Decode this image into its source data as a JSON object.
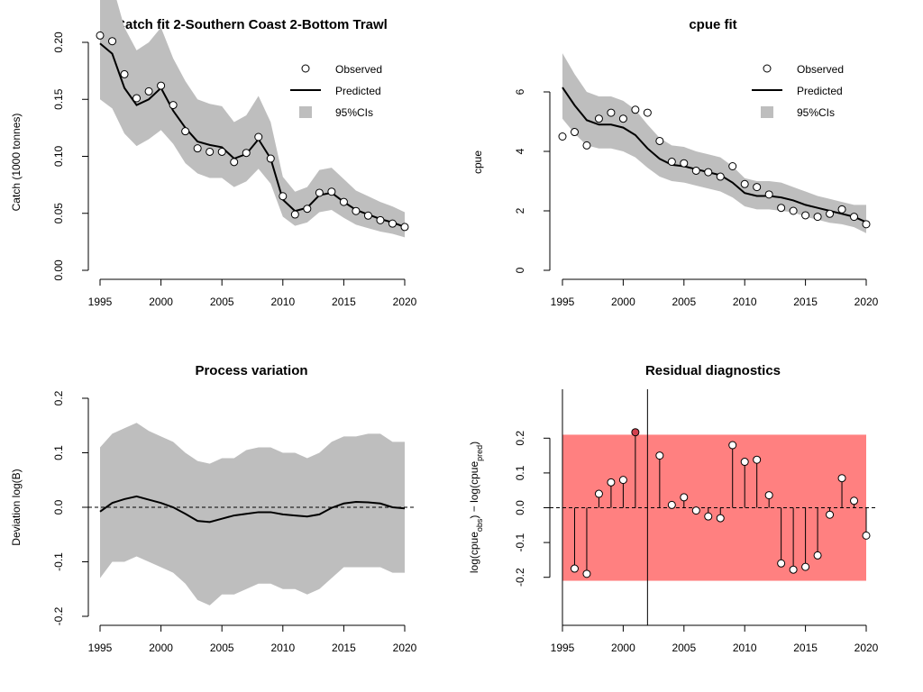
{
  "chart_data": [
    {
      "id": "catch",
      "type": "line",
      "title": "Catch fit 2-Southern Coast 2-Bottom Trawl",
      "xlabel": "",
      "ylabel": "Catch (1000 tonnes)",
      "xlim": [
        1995,
        2020
      ],
      "ylim": [
        0,
        0.2
      ],
      "xticks": [
        "1995",
        "2000",
        "2005",
        "2010",
        "2015",
        "2020"
      ],
      "yticks": [
        "0.00",
        "0.05",
        "0.10",
        "0.15",
        "0.20"
      ],
      "legend": {
        "position": "top-right",
        "entries": [
          "Observed",
          "Predicted",
          "95%CIs"
        ]
      },
      "x": [
        1995,
        1996,
        1997,
        1998,
        1999,
        2000,
        2001,
        2002,
        2003,
        2004,
        2005,
        2006,
        2007,
        2008,
        2009,
        2010,
        2011,
        2012,
        2013,
        2014,
        2015,
        2016,
        2017,
        2018,
        2019,
        2020
      ],
      "series": [
        {
          "name": "Observed",
          "values": [
            0.206,
            0.201,
            0.172,
            0.151,
            0.157,
            0.162,
            0.145,
            0.122,
            0.107,
            0.104,
            0.104,
            0.095,
            0.103,
            0.117,
            0.098,
            0.065,
            0.049,
            0.054,
            0.068,
            0.069,
            0.06,
            0.052,
            0.048,
            0.044,
            0.041,
            0.038
          ]
        },
        {
          "name": "Predicted",
          "values": [
            0.199,
            0.19,
            0.16,
            0.145,
            0.15,
            0.16,
            0.14,
            0.125,
            0.113,
            0.11,
            0.108,
            0.098,
            0.102,
            0.115,
            0.098,
            0.062,
            0.052,
            0.055,
            0.066,
            0.068,
            0.06,
            0.053,
            0.049,
            0.045,
            0.042,
            0.038
          ]
        },
        {
          "name": "95%CIs",
          "lower": [
            0.15,
            0.142,
            0.12,
            0.109,
            0.115,
            0.123,
            0.111,
            0.094,
            0.085,
            0.081,
            0.081,
            0.073,
            0.078,
            0.089,
            0.076,
            0.047,
            0.039,
            0.042,
            0.051,
            0.053,
            0.046,
            0.04,
            0.037,
            0.034,
            0.032,
            0.029
          ],
          "upper": [
            0.264,
            0.251,
            0.213,
            0.193,
            0.2,
            0.213,
            0.186,
            0.166,
            0.15,
            0.146,
            0.144,
            0.13,
            0.136,
            0.153,
            0.13,
            0.082,
            0.069,
            0.073,
            0.088,
            0.09,
            0.08,
            0.07,
            0.065,
            0.06,
            0.056,
            0.051
          ]
        }
      ],
      "colors": {
        "band": "#bebebe",
        "line": "#000000",
        "point_fill": "#ffffff"
      }
    },
    {
      "id": "cpue",
      "type": "line",
      "title": "cpue fit",
      "xlabel": "",
      "ylabel": "cpue",
      "xlim": [
        1995,
        2020
      ],
      "ylim": [
        0,
        7
      ],
      "xticks": [
        "1995",
        "2000",
        "2005",
        "2010",
        "2015",
        "2020"
      ],
      "yticks": [
        "0",
        "2",
        "4",
        "6"
      ],
      "legend": {
        "position": "top-right",
        "entries": [
          "Observed",
          "Predicted",
          "95%CIs"
        ]
      },
      "x": [
        1995,
        1996,
        1997,
        1998,
        1999,
        2000,
        2001,
        2002,
        2003,
        2004,
        2005,
        2006,
        2007,
        2008,
        2009,
        2010,
        2011,
        2012,
        2013,
        2014,
        2015,
        2016,
        2017,
        2018,
        2019,
        2020
      ],
      "series": [
        {
          "name": "Observed",
          "values": [
            4.5,
            4.65,
            4.2,
            5.1,
            5.3,
            5.1,
            5.4,
            5.3,
            4.35,
            3.65,
            3.6,
            3.35,
            3.3,
            3.15,
            3.5,
            2.9,
            2.8,
            2.55,
            2.1,
            2.0,
            1.85,
            1.8,
            1.9,
            2.05,
            1.8,
            1.55
          ]
        },
        {
          "name": "Predicted",
          "values": [
            6.15,
            5.55,
            5.05,
            4.9,
            4.9,
            4.8,
            4.55,
            4.1,
            3.75,
            3.55,
            3.5,
            3.4,
            3.3,
            3.2,
            2.95,
            2.6,
            2.5,
            2.5,
            2.45,
            2.35,
            2.2,
            2.1,
            2.0,
            1.9,
            1.8,
            1.62
          ]
        },
        {
          "name": "95%CIs",
          "lower": [
            5.1,
            4.6,
            4.2,
            4.1,
            4.1,
            4.0,
            3.8,
            3.45,
            3.15,
            3.0,
            2.95,
            2.85,
            2.75,
            2.65,
            2.45,
            2.15,
            2.05,
            2.05,
            2.0,
            1.95,
            1.8,
            1.7,
            1.6,
            1.55,
            1.45,
            1.25
          ],
          "upper": [
            7.3,
            6.6,
            6.0,
            5.85,
            5.85,
            5.7,
            5.4,
            4.9,
            4.45,
            4.2,
            4.15,
            4.0,
            3.9,
            3.8,
            3.5,
            3.1,
            3.0,
            3.0,
            2.95,
            2.8,
            2.65,
            2.5,
            2.4,
            2.3,
            2.2,
            2.2
          ]
        }
      ],
      "colors": {
        "band": "#bebebe",
        "line": "#000000",
        "point_fill": "#ffffff"
      }
    },
    {
      "id": "process",
      "type": "line",
      "title": "Process variation",
      "xlabel": "",
      "ylabel": "Deviation log(B)",
      "xlim": [
        1995,
        2020
      ],
      "ylim": [
        -0.2,
        0.2
      ],
      "xticks": [
        "1995",
        "2000",
        "2005",
        "2010",
        "2015",
        "2020"
      ],
      "yticks": [
        "-0.2",
        "-0.1",
        "0.0",
        "0.1",
        "0.2"
      ],
      "x": [
        1995,
        1996,
        1997,
        1998,
        1999,
        2000,
        2001,
        2002,
        2003,
        2004,
        2005,
        2006,
        2007,
        2008,
        2009,
        2010,
        2011,
        2012,
        2013,
        2014,
        2015,
        2016,
        2017,
        2018,
        2019,
        2020
      ],
      "series": [
        {
          "name": "Deviation",
          "values": [
            -0.008,
            0.008,
            0.015,
            0.02,
            0.014,
            0.008,
            0.0,
            -0.012,
            -0.025,
            -0.027,
            -0.021,
            -0.015,
            -0.012,
            -0.009,
            -0.009,
            -0.013,
            -0.015,
            -0.017,
            -0.013,
            -0.001,
            0.007,
            0.01,
            0.009,
            0.007,
            0.0,
            -0.002
          ]
        },
        {
          "name": "95%CIs",
          "lower": [
            -0.13,
            -0.1,
            -0.1,
            -0.09,
            -0.1,
            -0.11,
            -0.12,
            -0.14,
            -0.17,
            -0.18,
            -0.16,
            -0.16,
            -0.15,
            -0.14,
            -0.14,
            -0.15,
            -0.15,
            -0.16,
            -0.15,
            -0.13,
            -0.11,
            -0.11,
            -0.11,
            -0.11,
            -0.12,
            -0.12
          ],
          "upper": [
            0.11,
            0.135,
            0.145,
            0.155,
            0.14,
            0.13,
            0.12,
            0.1,
            0.085,
            0.08,
            0.09,
            0.09,
            0.105,
            0.11,
            0.11,
            0.1,
            0.1,
            0.09,
            0.1,
            0.12,
            0.13,
            0.13,
            0.135,
            0.135,
            0.12,
            0.12
          ]
        }
      ],
      "reference_line": 0,
      "colors": {
        "band": "#bebebe",
        "line": "#000000"
      }
    },
    {
      "id": "residual",
      "type": "scatter",
      "title": "Residual diagnostics",
      "xlabel": "",
      "ylabel": "log(cpue_obs) - log(cpue_pred)",
      "xlim": [
        1995,
        2020
      ],
      "ylim": [
        -0.25,
        0.25
      ],
      "xticks": [
        "1995",
        "2000",
        "2005",
        "2010",
        "2015",
        "2020"
      ],
      "yticks": [
        "-0.2",
        "-0.1",
        "0.0",
        "0.1",
        "0.2"
      ],
      "band": [
        -0.21,
        0.21
      ],
      "x": [
        1996,
        1997,
        1998,
        1999,
        2000,
        2001,
        2003,
        2004,
        2005,
        2006,
        2007,
        2008,
        2009,
        2010,
        2011,
        2012,
        2013,
        2014,
        2015,
        2016,
        2017,
        2018,
        2019,
        2020
      ],
      "series": [
        {
          "name": "Residuals",
          "values": [
            -0.175,
            -0.19,
            0.04,
            0.073,
            0.08,
            0.217,
            0.15,
            0.008,
            0.03,
            -0.008,
            -0.025,
            -0.03,
            0.18,
            0.132,
            0.138,
            0.036,
            -0.16,
            -0.178,
            -0.17,
            -0.137,
            -0.02,
            0.085,
            0.02,
            -0.08
          ]
        }
      ],
      "vertical_lines": [
        1995,
        2002
      ],
      "highlight_year": 2001,
      "colors": {
        "band": "#ff8080",
        "highlight": "#d2404e",
        "point_fill": "#ffffff"
      }
    }
  ]
}
